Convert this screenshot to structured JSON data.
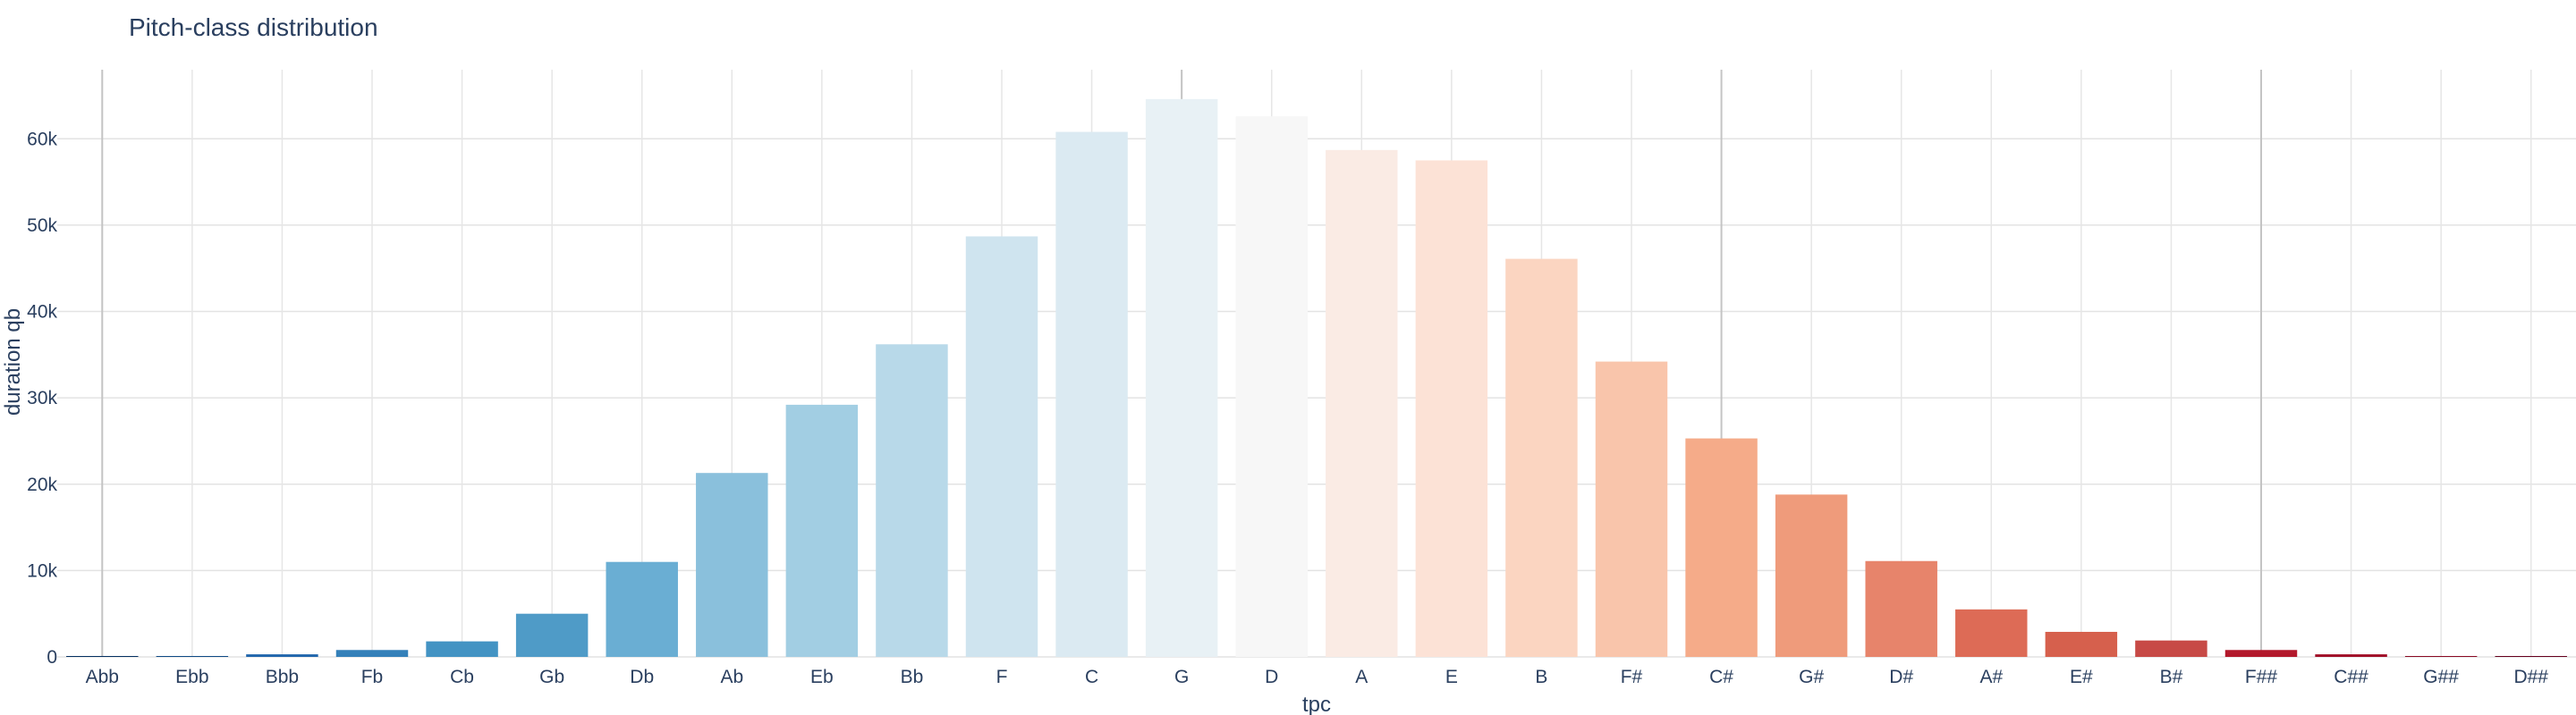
{
  "chart_data": {
    "type": "bar",
    "title": "Pitch-class distribution",
    "xlabel": "tpc",
    "ylabel": "duration qb",
    "categories": [
      "Abb",
      "Ebb",
      "Bbb",
      "Fb",
      "Cb",
      "Gb",
      "Db",
      "Ab",
      "Eb",
      "Bb",
      "F",
      "C",
      "G",
      "D",
      "A",
      "E",
      "B",
      "F#",
      "C#",
      "G#",
      "D#",
      "A#",
      "E#",
      "B#",
      "F##",
      "C##",
      "G##",
      "D##"
    ],
    "values": [
      10,
      80,
      300,
      800,
      1800,
      5000,
      11000,
      21300,
      29200,
      36200,
      48700,
      60800,
      64600,
      62600,
      58700,
      57500,
      46100,
      34200,
      25300,
      18800,
      11100,
      5500,
      2900,
      1900,
      800,
      300,
      100,
      40
    ],
    "bar_colors": [
      "#053061",
      "#0f4a85",
      "#2166ac",
      "#3480b9",
      "#4393c3",
      "#4f9bc7",
      "#6aaed3",
      "#8ac0dc",
      "#a2cee3",
      "#b8d9e9",
      "#cfe4ef",
      "#dbeaf2",
      "#e8f1f5",
      "#f7f7f7",
      "#faebe4",
      "#fce2d6",
      "#fbd5c1",
      "#f9c5ab",
      "#f5ab89",
      "#ef9b7b",
      "#e7846b",
      "#dd6b56",
      "#d6604d",
      "#c74a46",
      "#b2182b",
      "#a00e27",
      "#8b0a24",
      "#67001f"
    ],
    "yticks": [
      0,
      10000,
      20000,
      30000,
      40000,
      50000,
      60000
    ],
    "ytick_labels": [
      "0",
      "10k",
      "20k",
      "30k",
      "40k",
      "50k",
      "60k"
    ],
    "ylim": [
      0,
      68000
    ],
    "emphasized_gridlines": [
      "Abb",
      "G",
      "C#",
      "F##"
    ],
    "grid": true,
    "legend": "none"
  }
}
